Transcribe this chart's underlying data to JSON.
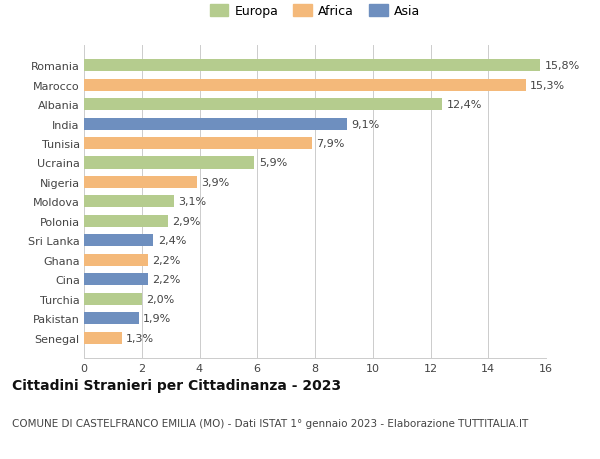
{
  "categories": [
    "Romania",
    "Marocco",
    "Albania",
    "India",
    "Tunisia",
    "Ucraina",
    "Nigeria",
    "Moldova",
    "Polonia",
    "Sri Lanka",
    "Ghana",
    "Cina",
    "Turchia",
    "Pakistan",
    "Senegal"
  ],
  "values": [
    15.8,
    15.3,
    12.4,
    9.1,
    7.9,
    5.9,
    3.9,
    3.1,
    2.9,
    2.4,
    2.2,
    2.2,
    2.0,
    1.9,
    1.3
  ],
  "labels": [
    "15,8%",
    "15,3%",
    "12,4%",
    "9,1%",
    "7,9%",
    "5,9%",
    "3,9%",
    "3,1%",
    "2,9%",
    "2,4%",
    "2,2%",
    "2,2%",
    "2,0%",
    "1,9%",
    "1,3%"
  ],
  "continents": [
    "Europa",
    "Africa",
    "Europa",
    "Asia",
    "Africa",
    "Europa",
    "Africa",
    "Europa",
    "Europa",
    "Asia",
    "Africa",
    "Asia",
    "Europa",
    "Asia",
    "Africa"
  ],
  "colors": {
    "Europa": "#b5cc8e",
    "Africa": "#f4b97a",
    "Asia": "#6e8fbf"
  },
  "legend_labels": [
    "Europa",
    "Africa",
    "Asia"
  ],
  "title": "Cittadini Stranieri per Cittadinanza - 2023",
  "subtitle": "COMUNE DI CASTELFRANCO EMILIA (MO) - Dati ISTAT 1° gennaio 2023 - Elaborazione TUTTITALIA.IT",
  "xlim": [
    0,
    16
  ],
  "xticks": [
    0,
    2,
    4,
    6,
    8,
    10,
    12,
    14,
    16
  ],
  "background_color": "#ffffff",
  "grid_color": "#cccccc",
  "bar_height": 0.62,
  "label_fontsize": 8,
  "title_fontsize": 10,
  "subtitle_fontsize": 7.5,
  "ytick_fontsize": 8,
  "xtick_fontsize": 8
}
